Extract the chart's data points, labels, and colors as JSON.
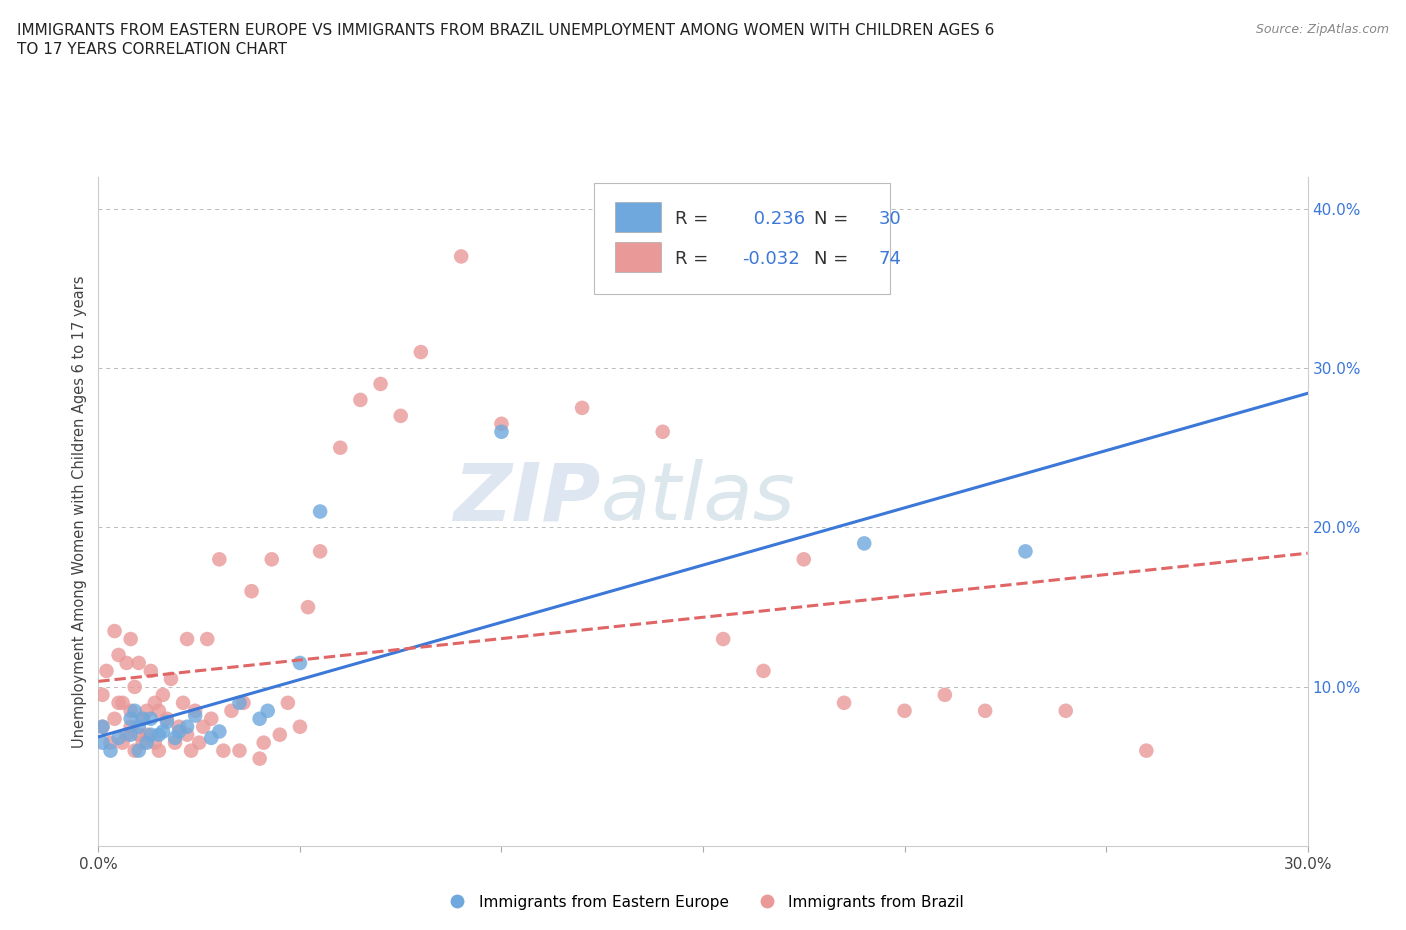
{
  "title_line1": "IMMIGRANTS FROM EASTERN EUROPE VS IMMIGRANTS FROM BRAZIL UNEMPLOYMENT AMONG WOMEN WITH CHILDREN AGES 6",
  "title_line2": "TO 17 YEARS CORRELATION CHART",
  "source": "Source: ZipAtlas.com",
  "ylabel": "Unemployment Among Women with Children Ages 6 to 17 years",
  "xlim": [
    0.0,
    0.3
  ],
  "ylim": [
    0.0,
    0.42
  ],
  "blue_r": 0.236,
  "blue_n": 30,
  "pink_r": -0.032,
  "pink_n": 74,
  "blue_color": "#6fa8dc",
  "pink_color": "#ea9999",
  "blue_line_color": "#3c78d8",
  "pink_line_color": "#e06666",
  "watermark_left": "ZIP",
  "watermark_right": "atlas",
  "legend_label_blue": "Immigrants from Eastern Europe",
  "legend_label_pink": "Immigrants from Brazil",
  "blue_x": [
    0.001,
    0.001,
    0.003,
    0.005,
    0.008,
    0.008,
    0.009,
    0.01,
    0.01,
    0.011,
    0.012,
    0.013,
    0.013,
    0.015,
    0.016,
    0.017,
    0.019,
    0.02,
    0.022,
    0.024,
    0.028,
    0.03,
    0.035,
    0.04,
    0.042,
    0.05,
    0.055,
    0.1,
    0.19,
    0.23
  ],
  "blue_y": [
    0.065,
    0.075,
    0.06,
    0.068,
    0.07,
    0.08,
    0.085,
    0.06,
    0.075,
    0.08,
    0.065,
    0.07,
    0.08,
    0.07,
    0.072,
    0.078,
    0.068,
    0.072,
    0.075,
    0.082,
    0.068,
    0.072,
    0.09,
    0.08,
    0.085,
    0.115,
    0.21,
    0.26,
    0.19,
    0.185
  ],
  "pink_x": [
    0.001,
    0.001,
    0.002,
    0.003,
    0.004,
    0.004,
    0.005,
    0.005,
    0.006,
    0.006,
    0.007,
    0.007,
    0.008,
    0.008,
    0.008,
    0.009,
    0.009,
    0.01,
    0.01,
    0.011,
    0.011,
    0.012,
    0.012,
    0.013,
    0.014,
    0.014,
    0.015,
    0.015,
    0.016,
    0.017,
    0.018,
    0.019,
    0.02,
    0.021,
    0.022,
    0.022,
    0.023,
    0.024,
    0.025,
    0.026,
    0.027,
    0.028,
    0.03,
    0.031,
    0.033,
    0.035,
    0.036,
    0.038,
    0.04,
    0.041,
    0.043,
    0.045,
    0.047,
    0.05,
    0.052,
    0.055,
    0.06,
    0.065,
    0.07,
    0.075,
    0.08,
    0.09,
    0.1,
    0.12,
    0.14,
    0.155,
    0.165,
    0.175,
    0.185,
    0.2,
    0.21,
    0.22,
    0.24,
    0.26
  ],
  "pink_y": [
    0.075,
    0.095,
    0.11,
    0.065,
    0.08,
    0.135,
    0.09,
    0.12,
    0.065,
    0.09,
    0.07,
    0.115,
    0.075,
    0.085,
    0.13,
    0.06,
    0.1,
    0.07,
    0.115,
    0.065,
    0.08,
    0.07,
    0.085,
    0.11,
    0.065,
    0.09,
    0.06,
    0.085,
    0.095,
    0.08,
    0.105,
    0.065,
    0.075,
    0.09,
    0.07,
    0.13,
    0.06,
    0.085,
    0.065,
    0.075,
    0.13,
    0.08,
    0.18,
    0.06,
    0.085,
    0.06,
    0.09,
    0.16,
    0.055,
    0.065,
    0.18,
    0.07,
    0.09,
    0.075,
    0.15,
    0.185,
    0.25,
    0.28,
    0.29,
    0.27,
    0.31,
    0.37,
    0.265,
    0.275,
    0.26,
    0.13,
    0.11,
    0.18,
    0.09,
    0.085,
    0.095,
    0.085,
    0.085,
    0.06
  ]
}
